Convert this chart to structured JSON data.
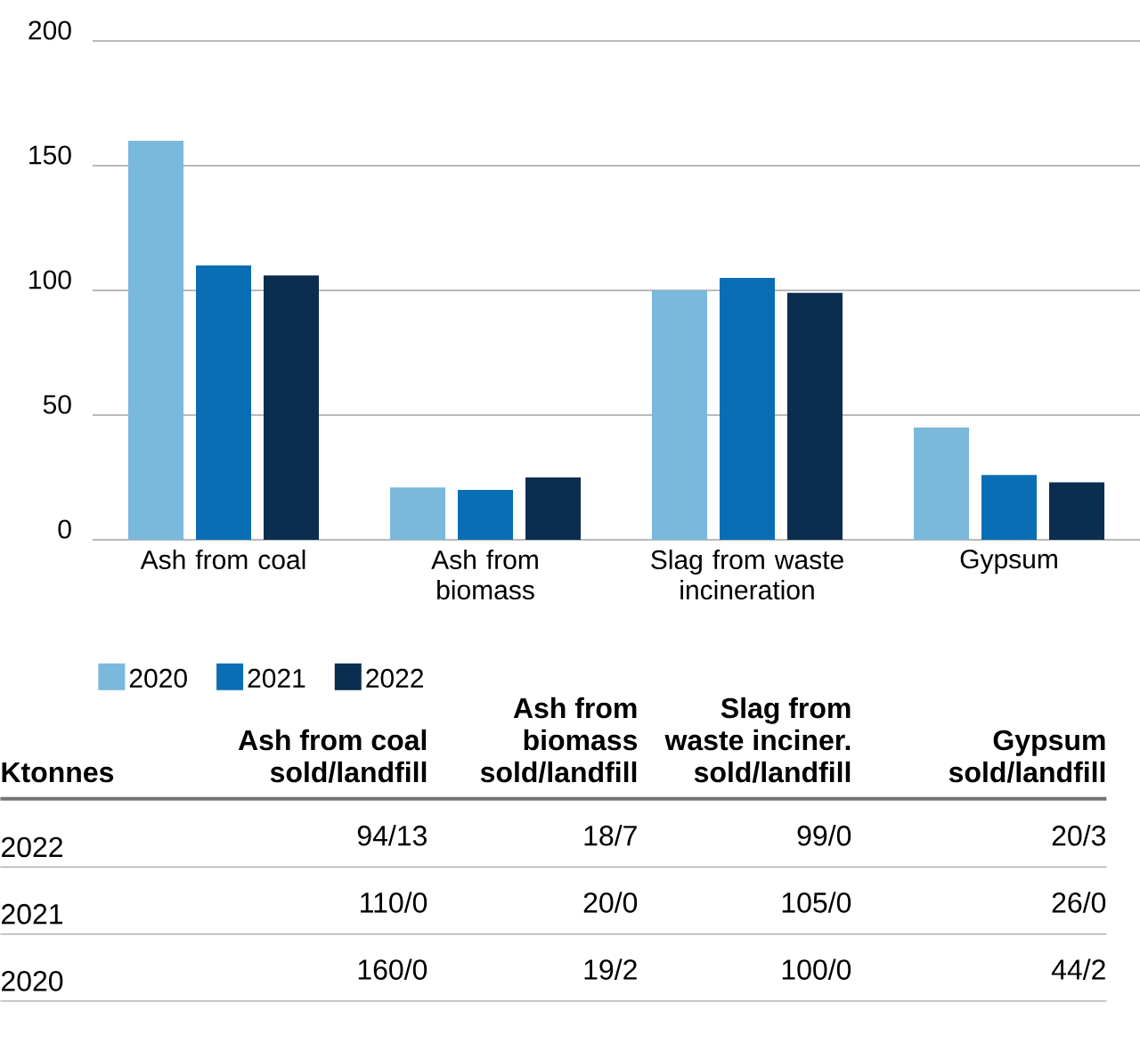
{
  "chart_data": [
    {
      "type": "bar",
      "categories": [
        "Ash from coal",
        "Ash from biomass",
        "Slag from waste incineration",
        "Gypsum"
      ],
      "series": [
        {
          "name": "2020",
          "color": "#7ab8dc",
          "values": [
            160,
            21,
            100,
            45
          ]
        },
        {
          "name": "2021",
          "color": "#0a6eb5",
          "values": [
            110,
            20,
            105,
            26
          ]
        },
        {
          "name": "2022",
          "color": "#0b2d4f",
          "values": [
            106,
            25,
            99,
            23
          ]
        }
      ],
      "ylim": [
        0,
        200
      ],
      "yticks": [
        0,
        50,
        100,
        150,
        200
      ],
      "grid": "y",
      "legend": "bottom left"
    },
    {
      "type": "other",
      "ylabel": "Ktonnes",
      "categories": [
        "Ash from coal sold/landfill",
        "Ash from biomass sold/landfill",
        "Slag from waste inciner. sold/landfill",
        "Gypsum sold/landfill"
      ],
      "y_categories": [
        "2022",
        "2021",
        "2020"
      ],
      "cell_labels": [
        [
          "94/13",
          "18/7",
          "99/0",
          "20/3"
        ],
        [
          "110/0",
          "20/0",
          "105/0",
          "26/0"
        ],
        [
          "160/0",
          "19/2",
          "100/0",
          "44/2"
        ]
      ]
    }
  ]
}
